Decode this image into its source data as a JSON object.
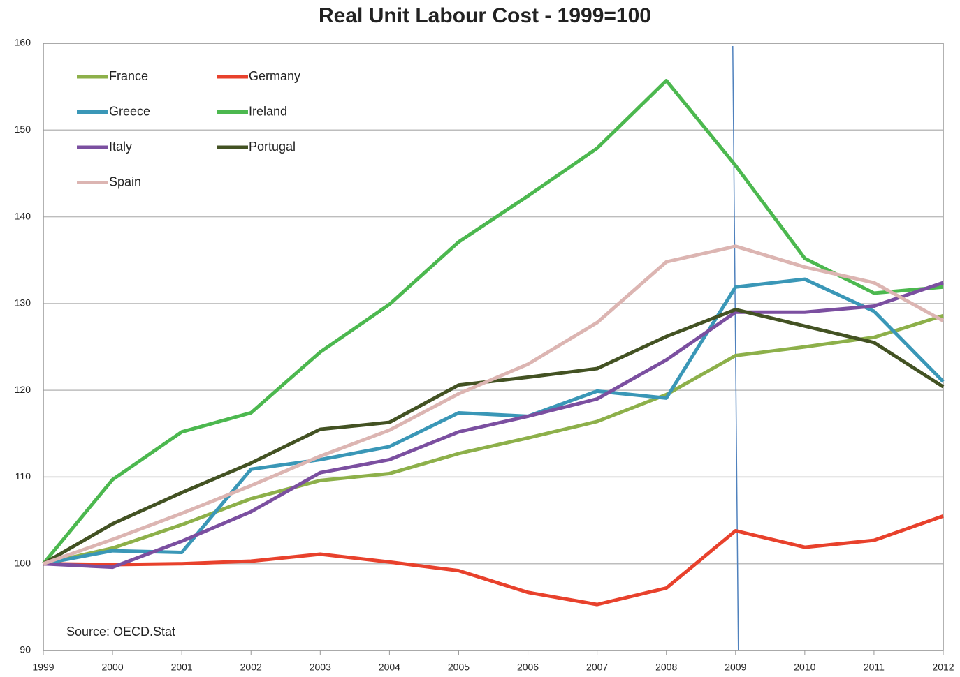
{
  "chart_data": {
    "type": "line",
    "title": "Real Unit Labour Cost - 1999=100",
    "x": [
      1999,
      2000,
      2001,
      2002,
      2003,
      2004,
      2005,
      2006,
      2007,
      2008,
      2009,
      2010,
      2011,
      2012
    ],
    "xlim": [
      1999,
      2012
    ],
    "xticks": [
      1999,
      2000,
      2001,
      2002,
      2003,
      2004,
      2005,
      2006,
      2007,
      2008,
      2009,
      2010,
      2011,
      2012
    ],
    "ylim": [
      90,
      160
    ],
    "yticks": [
      90,
      100,
      110,
      120,
      130,
      140,
      150,
      160
    ],
    "grid": true,
    "legend": "upper left",
    "annotation": "Source: OECD.Stat",
    "marker_line": {
      "x": 2009,
      "color": "#4f81bd"
    },
    "series": [
      {
        "name": "France",
        "color": "#8db04a",
        "values": [
          100,
          101.8,
          104.5,
          107.5,
          109.6,
          110.4,
          112.7,
          114.5,
          116.4,
          119.5,
          124,
          125,
          126.1,
          128.6
        ]
      },
      {
        "name": "Germany",
        "color": "#e8412c",
        "values": [
          100,
          99.9,
          100,
          100.3,
          101.1,
          100.2,
          99.2,
          96.7,
          95.3,
          97.2,
          103.8,
          101.9,
          102.7,
          105.5
        ]
      },
      {
        "name": "Greece",
        "color": "#3a97b7",
        "values": [
          100,
          101.5,
          101.3,
          110.9,
          112,
          113.5,
          117.4,
          117,
          119.9,
          119.1,
          131.9,
          132.8,
          129.1,
          121
        ]
      },
      {
        "name": "Ireland",
        "color": "#4cb84f",
        "values": [
          100,
          109.7,
          115.2,
          117.4,
          124.4,
          129.9,
          137.1,
          142.4,
          147.9,
          155.7,
          145.9,
          135.2,
          131.2,
          131.9
        ]
      },
      {
        "name": "Italy",
        "color": "#7b4fa0",
        "values": [
          100,
          99.6,
          102.6,
          106,
          110.5,
          112,
          115.2,
          117,
          119,
          123.5,
          129,
          129,
          129.7,
          132.4
        ]
      },
      {
        "name": "Portugal",
        "color": "#435223",
        "values": [
          100,
          104.6,
          108.2,
          111.6,
          115.5,
          116.3,
          120.6,
          121.5,
          122.5,
          126.2,
          129.3,
          127.4,
          125.5,
          120.4
        ]
      },
      {
        "name": "Spain",
        "color": "#dcb5b2",
        "values": [
          100,
          102.8,
          105.8,
          109,
          112.4,
          115.4,
          119.6,
          123,
          127.8,
          134.8,
          136.6,
          134.2,
          132.4,
          128
        ]
      }
    ]
  }
}
